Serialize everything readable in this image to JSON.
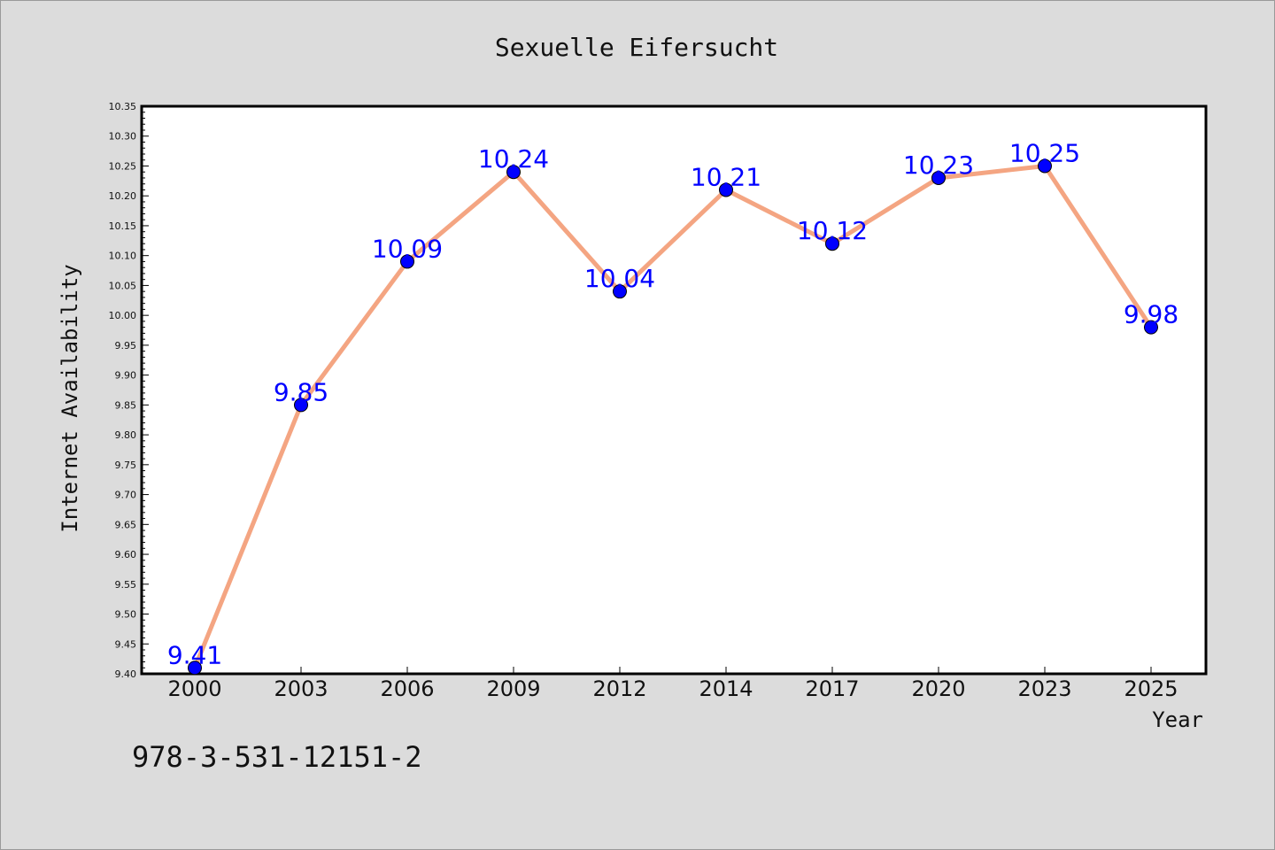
{
  "chart_data": {
    "type": "line",
    "title": "Sexuelle Eifersucht",
    "xlabel": "Year",
    "ylabel": "Internet Availability",
    "categories": [
      "2000",
      "2003",
      "2006",
      "2009",
      "2012",
      "2014",
      "2017",
      "2020",
      "2023",
      "2025"
    ],
    "series": [
      {
        "values": [
          9.41,
          9.85,
          10.09,
          10.24,
          10.04,
          10.21,
          10.12,
          10.23,
          10.25,
          9.98
        ]
      }
    ],
    "data_labels": [
      "9.41",
      "9.85",
      "10.09",
      "10.24",
      "10.04",
      "10.21",
      "10.12",
      "10.23",
      "10.25",
      "9.98"
    ],
    "ylim": [
      9.4,
      10.35
    ],
    "y_ticks": [
      "9.40",
      "9.45",
      "9.50",
      "9.55",
      "9.60",
      "9.65",
      "9.70",
      "9.75",
      "9.80",
      "9.85",
      "9.90",
      "9.95",
      "10.00",
      "10.05",
      "10.10",
      "10.15",
      "10.20",
      "10.25",
      "10.30",
      "10.35"
    ],
    "grid": false,
    "legend": "none",
    "line_color": "#f4a582",
    "marker_color": "#0000ff",
    "label_color": "#0000ff",
    "footer_text": "978-3-531-12151-2"
  }
}
